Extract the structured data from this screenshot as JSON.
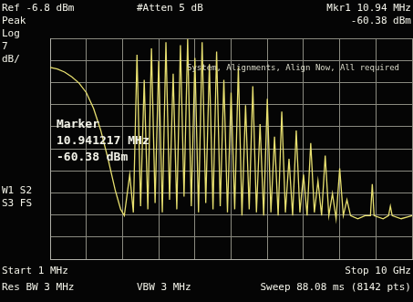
{
  "chart_data": {
    "type": "line",
    "annotations": [
      "Ref -6.8 dBm",
      "#Atten 5 dB",
      "Mkr1 10.94 MHz",
      "-60.38 dBm",
      "Peak",
      "Log",
      "7",
      "dB/",
      "System, Alignments, Align Now, All required",
      "Marker",
      "10.941217 MHz",
      "-60.38 dBm",
      "W1 S2",
      "S3 FS",
      "Start 1 MHz",
      "Stop 10 GHz",
      "Res BW 3 MHz",
      "VBW 3 MHz",
      "Sweep 88.08 ms (8142 pts)"
    ],
    "x": [
      1,
      200,
      400,
      600,
      800,
      1000,
      1200,
      1400,
      1600,
      1800,
      1950,
      2050,
      2200,
      2300,
      2400,
      2500,
      2600,
      2700,
      2800,
      2900,
      3000,
      3100,
      3200,
      3300,
      3400,
      3500,
      3600,
      3700,
      3800,
      3900,
      4000,
      4100,
      4200,
      4300,
      4400,
      4500,
      4600,
      4700,
      4800,
      4900,
      5000,
      5100,
      5200,
      5300,
      5400,
      5500,
      5600,
      5700,
      5800,
      5900,
      6000,
      6100,
      6200,
      6300,
      6400,
      6500,
      6600,
      6700,
      6800,
      6900,
      7000,
      7100,
      7200,
      7300,
      7400,
      7500,
      7600,
      7700,
      7800,
      7900,
      8000,
      8100,
      8200,
      8300,
      8500,
      8700,
      8850,
      8900,
      8950,
      9200,
      9350,
      9400,
      9450,
      9700,
      10000
    ],
    "values": [
      -16,
      -16.5,
      -17.5,
      -19,
      -21,
      -24,
      -29,
      -36,
      -45,
      -55,
      -61,
      -63,
      -50,
      -62,
      -12,
      -60,
      -20,
      -61,
      -10,
      -59,
      -14,
      -62,
      -8,
      -58,
      -18,
      -61,
      -9,
      -57,
      -7,
      -60,
      -13,
      -62,
      -8,
      -59,
      -15,
      -61,
      -11,
      -60,
      -20,
      -62,
      -24,
      -61,
      -16,
      -63,
      -28,
      -61,
      -22,
      -62,
      -34,
      -63,
      -26,
      -62,
      -38,
      -63,
      -30,
      -62,
      -45,
      -63,
      -36,
      -62,
      -50,
      -63,
      -40,
      -62,
      -52,
      -63,
      -44,
      -63,
      -56,
      -64,
      -48,
      -63,
      -58,
      -63,
      -64,
      -63,
      -63,
      -53,
      -63,
      -64,
      -63,
      -60,
      -63,
      -64,
      -63
    ],
    "color": "#e8e070",
    "marker": "none",
    "line_style": "solid",
    "xlim": [
      1,
      10000
    ],
    "xticks": [
      1,
      1000.9,
      2000.8,
      3000.7,
      4000.6,
      5000.5,
      6000.4,
      7000.3,
      8000.2,
      9000.1,
      10000
    ],
    "ylim": [
      -76.8,
      -6.8
    ],
    "yticks": [
      -76.8,
      -69.8,
      -62.8,
      -55.8,
      -48.8,
      -41.8,
      -34.8,
      -27.8,
      -20.8,
      -13.8,
      -6.8
    ],
    "grid": true,
    "tick_labels": false
  }
}
